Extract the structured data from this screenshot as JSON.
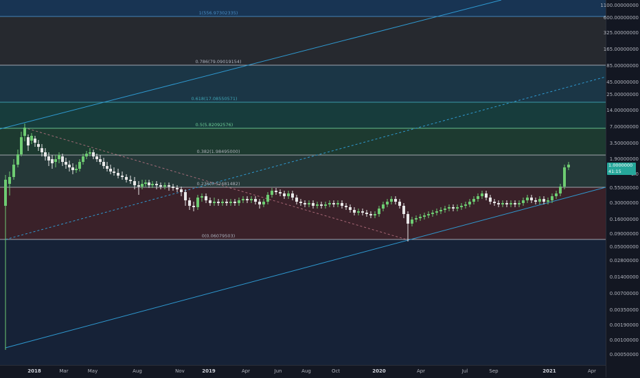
{
  "price_scale": {
    "labels": [
      "1100.00000000",
      "600.00000000",
      "325.00000000",
      "165.00000000",
      "85.00000000",
      "45.00000000",
      "25.00000000",
      "14.00000000",
      "7.00000000",
      "3.50000000",
      "1.90000000",
      "1.0",
      "0.55000000",
      "0.30000000",
      "0.16000000",
      "0.09000000",
      "0.05000000",
      "0.02800000",
      "0.01400000",
      "0.00700000",
      "0.00350000",
      "0.00190000",
      "0.00100000",
      "0.00050000"
    ],
    "current_price_line1": "1.0000000",
    "current_price_line2": "41:15"
  },
  "time_scale": {
    "labels": [
      {
        "text": "2018",
        "bold": true
      },
      {
        "text": "Mar",
        "bold": false
      },
      {
        "text": "May",
        "bold": false
      },
      {
        "text": "Aug",
        "bold": false
      },
      {
        "text": "Nov",
        "bold": false
      },
      {
        "text": "2019",
        "bold": true
      },
      {
        "text": "Apr",
        "bold": false
      },
      {
        "text": "Jun",
        "bold": false
      },
      {
        "text": "Aug",
        "bold": false
      },
      {
        "text": "Oct",
        "bold": false
      },
      {
        "text": "2020",
        "bold": true
      },
      {
        "text": "Apr",
        "bold": false
      },
      {
        "text": "Jul",
        "bold": false
      },
      {
        "text": "Sep",
        "bold": false
      },
      {
        "text": "2021",
        "bold": true
      },
      {
        "text": "Apr",
        "bold": false
      }
    ]
  },
  "fib_levels": [
    {
      "label": "1(556.97302335)",
      "color": "#4a8ec4"
    },
    {
      "label": "0.786(79.09019154)",
      "color": "#aeb4c0"
    },
    {
      "label": "0.618(17.08550571)",
      "color": "#3fa7b7"
    },
    {
      "label": "0.5(5.82092576)",
      "color": "#6fcf97"
    },
    {
      "label": "0.382(1.98495000)",
      "color": "#b0b3bb"
    },
    {
      "label": "0.236(0.52481482)",
      "color": "#b0b3bb"
    },
    {
      "label": "0(0.06079503)",
      "color": "#aeb4c0"
    }
  ],
  "colors": {
    "background": "#131722",
    "bull_candle": "#6ecc72",
    "bear_candle": "#e8e8e8",
    "channel_line": "#2f9bd3",
    "price_tag": "#26a69a"
  }
}
